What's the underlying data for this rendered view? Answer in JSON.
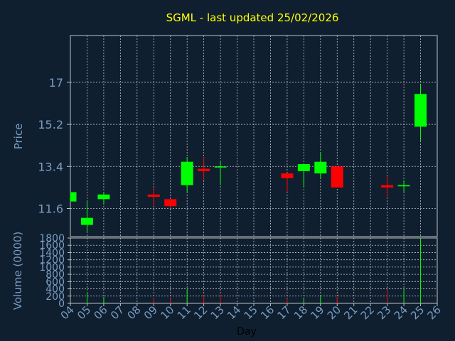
{
  "chart_data": [
    {
      "type": "candlestick",
      "title": "SGML - last updated 25/02/2026",
      "ylabel": "Price",
      "ylim": [
        10.4,
        19.0
      ],
      "yticks": [
        "11.6",
        "13.4",
        "15.2",
        "17"
      ],
      "categories": [
        "04",
        "05",
        "06",
        "07",
        "08",
        "09",
        "10",
        "11",
        "12",
        "13",
        "14",
        "15",
        "16",
        "17",
        "18",
        "19",
        "20",
        "21",
        "22",
        "23",
        "24",
        "25",
        "26"
      ],
      "candles": [
        {
          "day": "04",
          "open": 11.9,
          "high": 12.3,
          "low": 11.9,
          "close": 12.3
        },
        {
          "day": "05",
          "open": 10.9,
          "high": 11.9,
          "low": 10.6,
          "close": 11.2
        },
        {
          "day": "06",
          "open": 12.0,
          "high": 12.3,
          "low": 11.8,
          "close": 12.2
        },
        {
          "day": "09",
          "open": 12.2,
          "high": 12.5,
          "low": 11.7,
          "close": 12.1
        },
        {
          "day": "10",
          "open": 12.0,
          "high": 12.0,
          "low": 11.6,
          "close": 11.7
        },
        {
          "day": "11",
          "open": 12.6,
          "high": 13.8,
          "low": 12.3,
          "close": 13.6
        },
        {
          "day": "12",
          "open": 13.3,
          "high": 13.8,
          "low": 12.8,
          "close": 13.2
        },
        {
          "day": "13",
          "open": 13.4,
          "high": 13.6,
          "low": 12.6,
          "close": 13.4
        },
        {
          "day": "17",
          "open": 13.1,
          "high": 13.1,
          "low": 12.3,
          "close": 12.9
        },
        {
          "day": "18",
          "open": 13.2,
          "high": 13.5,
          "low": 12.5,
          "close": 13.5
        },
        {
          "day": "19",
          "open": 13.1,
          "high": 14.0,
          "low": 12.9,
          "close": 13.6
        },
        {
          "day": "20",
          "open": 13.4,
          "high": 13.4,
          "low": 12.5,
          "close": 12.5
        },
        {
          "day": "23",
          "open": 12.6,
          "high": 13.0,
          "low": 12.1,
          "close": 12.5
        },
        {
          "day": "24",
          "open": 12.55,
          "high": 12.8,
          "low": 12.3,
          "close": 12.6
        },
        {
          "day": "25",
          "open": 15.1,
          "high": 16.9,
          "low": 14.5,
          "close": 16.5
        }
      ],
      "colors": {
        "up": "#00ff00",
        "down": "#ff0000",
        "background": "#0f1f30",
        "title": "#ffff00",
        "axis_text": "#7b9cbf",
        "grid": "#c0c0c0"
      }
    },
    {
      "type": "bar",
      "ylabel": "Volume (0000)",
      "xlabel": "Day",
      "ylim": [
        0,
        1800
      ],
      "yticks": [
        "0",
        "200",
        "400",
        "600",
        "800",
        "1000",
        "1200",
        "1400",
        "1600",
        "1800"
      ],
      "bars": [
        {
          "day": "05",
          "value": 300,
          "direction": "up"
        },
        {
          "day": "06",
          "value": 180,
          "direction": "up"
        },
        {
          "day": "09",
          "value": 150,
          "direction": "down"
        },
        {
          "day": "10",
          "value": 140,
          "direction": "down"
        },
        {
          "day": "11",
          "value": 360,
          "direction": "up"
        },
        {
          "day": "12",
          "value": 220,
          "direction": "down"
        },
        {
          "day": "13",
          "value": 230,
          "direction": "down"
        },
        {
          "day": "17",
          "value": 130,
          "direction": "down"
        },
        {
          "day": "18",
          "value": 160,
          "direction": "up"
        },
        {
          "day": "19",
          "value": 200,
          "direction": "up"
        },
        {
          "day": "20",
          "value": 180,
          "direction": "down"
        },
        {
          "day": "23",
          "value": 380,
          "direction": "down"
        },
        {
          "day": "24",
          "value": 380,
          "direction": "up"
        },
        {
          "day": "25",
          "value": 1800,
          "direction": "up"
        }
      ]
    }
  ]
}
